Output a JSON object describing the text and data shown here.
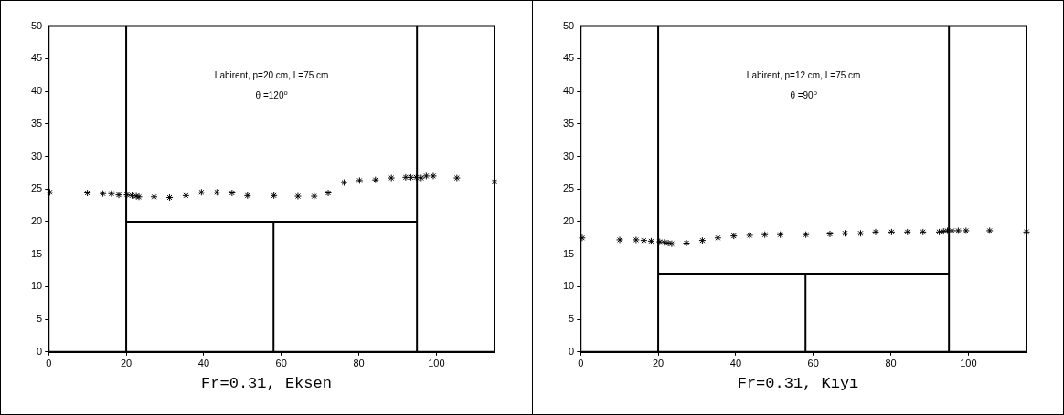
{
  "chart_data": [
    {
      "type": "scatter",
      "title": "Fr=0.31, Eksen",
      "annotations": [
        "Labirent, p=20 cm, L=75 cm",
        "θ =120$^{o}$"
      ],
      "xlim": [
        0,
        115
      ],
      "xticks": [
        0,
        20,
        40,
        60,
        80,
        100
      ],
      "ylim": [
        0,
        50
      ],
      "yticks": [
        0,
        5,
        10,
        15,
        20,
        25,
        30,
        35,
        40,
        45,
        50
      ],
      "grid": false,
      "legend": false,
      "series": [
        {
          "marker": "cross",
          "color": "#000000",
          "x": [
            0.3,
            10,
            14,
            16.2,
            18.1,
            20.2,
            21.5,
            22.6,
            23.3,
            27.2,
            31.2,
            35.4,
            39.4,
            43.4,
            47.3,
            51.3,
            58.1,
            64.3,
            68.5,
            72.1,
            76.2,
            80.2,
            84.3,
            88.4,
            92.1,
            93.4,
            94.8,
            96.1,
            97.4,
            99.2,
            105.3,
            115
          ],
          "values": [
            24.5,
            24.4,
            24.3,
            24.3,
            24.1,
            24.1,
            24,
            23.9,
            23.8,
            23.8,
            23.7,
            24,
            24.5,
            24.5,
            24.4,
            24,
            24,
            23.9,
            23.9,
            24.4,
            26,
            26.3,
            26.4,
            26.7,
            26.8,
            26.8,
            26.8,
            26.7,
            27,
            27,
            26.7,
            26.1
          ]
        },
        {
          "type": "line",
          "color": "#000000",
          "x": [
            20,
            95
          ],
          "values": [
            20,
            20
          ]
        },
        {
          "type": "line",
          "color": "#000000",
          "x": [
            58,
            58
          ],
          "values": [
            0,
            20
          ]
        }
      ],
      "ref_lines": [
        {
          "axis": "x",
          "value": 20,
          "color": "#000000"
        },
        {
          "axis": "x",
          "value": 95,
          "color": "#000000"
        }
      ]
    },
    {
      "type": "scatter",
      "title": "Fr=0.31, Kıyı",
      "annotations": [
        "Labirent, p=12 cm, L=75 cm",
        "θ =90$^{o}$"
      ],
      "xlim": [
        0,
        115
      ],
      "xticks": [
        0,
        20,
        40,
        60,
        80,
        100
      ],
      "ylim": [
        0,
        50
      ],
      "yticks": [
        0,
        5,
        10,
        15,
        20,
        25,
        30,
        35,
        40,
        45,
        50
      ],
      "grid": false,
      "legend": false,
      "series": [
        {
          "marker": "cross",
          "color": "#000000",
          "x": [
            0.4,
            10.1,
            14.3,
            16.3,
            18.2,
            20.4,
            21.6,
            22.6,
            23.5,
            27.3,
            31.4,
            35.4,
            39.5,
            43.6,
            47.5,
            51.5,
            58.1,
            64.3,
            68.2,
            72.2,
            76.1,
            80.2,
            84.3,
            88.3,
            92.5,
            93.6,
            94.6,
            95.8,
            97.4,
            99.4,
            105.5,
            115
          ],
          "values": [
            17.5,
            17.2,
            17.2,
            17.1,
            17,
            16.9,
            16.8,
            16.7,
            16.6,
            16.7,
            17.1,
            17.5,
            17.8,
            17.9,
            18,
            18,
            18,
            18.1,
            18.2,
            18.2,
            18.4,
            18.4,
            18.4,
            18.4,
            18.4,
            18.5,
            18.6,
            18.6,
            18.6,
            18.6,
            18.6,
            18.4
          ]
        },
        {
          "type": "line",
          "color": "#000000",
          "x": [
            20,
            95
          ],
          "values": [
            12,
            12
          ]
        },
        {
          "type": "line",
          "color": "#000000",
          "x": [
            58,
            58
          ],
          "values": [
            0,
            12
          ]
        }
      ],
      "ref_lines": [
        {
          "axis": "x",
          "value": 20,
          "color": "#000000"
        },
        {
          "axis": "x",
          "value": 95,
          "color": "#000000"
        }
      ]
    }
  ]
}
